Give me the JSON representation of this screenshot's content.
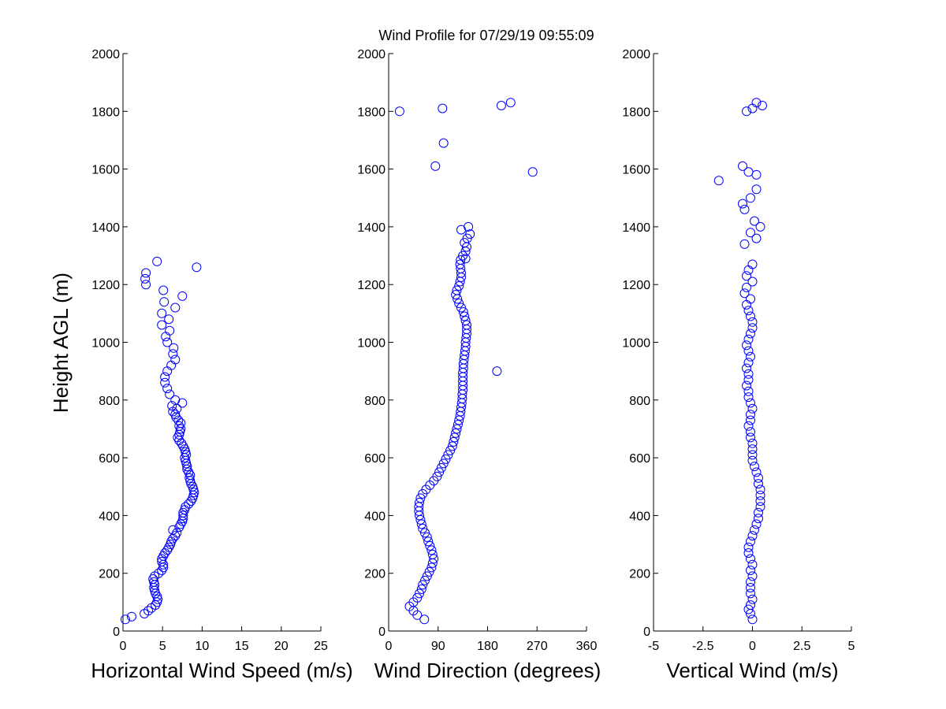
{
  "chart_data": {
    "title": "Wind Profile for  07/29/19 09:55:09",
    "ylabel": "Height AGL (m)",
    "marker_color": "#0000ff",
    "grid": false,
    "panels": [
      {
        "type": "scatter",
        "xlabel": "Horizontal Wind Speed (m/s)",
        "xlim": [
          0,
          25
        ],
        "ylim": [
          0,
          2000
        ],
        "xticks": [
          "0",
          "5",
          "10",
          "15",
          "20",
          "25"
        ],
        "yticks": [
          "0",
          "200",
          "400",
          "600",
          "800",
          "1000",
          "1200",
          "1400",
          "1600",
          "1800",
          "2000"
        ],
        "x": [
          0.3,
          1.1,
          2.7,
          3.2,
          3.6,
          4.1,
          4.3,
          4.4,
          4.3,
          4.1,
          4.0,
          3.9,
          4.0,
          3.9,
          3.8,
          4.0,
          4.5,
          4.9,
          5.1,
          5.1,
          4.9,
          4.9,
          5.1,
          5.3,
          5.6,
          5.8,
          6.0,
          6.1,
          6.3,
          6.6,
          6.8,
          6.3,
          7.1,
          7.3,
          7.5,
          7.6,
          7.6,
          7.6,
          7.8,
          7.9,
          8.3,
          8.6,
          8.8,
          8.9,
          9.0,
          8.9,
          8.8,
          8.6,
          8.5,
          8.4,
          8.5,
          8.3,
          8.1,
          8.1,
          8.0,
          7.9,
          7.8,
          8.0,
          7.9,
          7.8,
          7.6,
          7.4,
          7.1,
          6.9,
          7.1,
          7.2,
          7.3,
          7.1,
          7.3,
          7.0,
          6.7,
          6.6,
          6.3,
          6.8,
          6.2,
          7.5,
          6.6,
          5.9,
          5.6,
          5.3,
          5.3,
          5.6,
          6.1,
          6.6,
          6.3,
          6.4,
          5.6,
          5.4,
          5.9,
          4.9,
          5.8,
          4.9,
          6.6,
          5.2,
          7.5,
          5.1,
          2.9,
          2.8,
          2.9,
          9.3,
          4.3
        ],
        "y": [
          40,
          50,
          60,
          70,
          80,
          90,
          100,
          110,
          120,
          130,
          140,
          150,
          160,
          170,
          180,
          190,
          200,
          210,
          220,
          230,
          240,
          250,
          260,
          270,
          280,
          290,
          300,
          310,
          320,
          330,
          340,
          350,
          360,
          370,
          380,
          390,
          400,
          410,
          420,
          430,
          440,
          450,
          460,
          470,
          480,
          490,
          500,
          510,
          520,
          530,
          540,
          550,
          560,
          570,
          580,
          590,
          600,
          610,
          620,
          630,
          640,
          650,
          660,
          670,
          680,
          690,
          700,
          710,
          720,
          730,
          740,
          750,
          760,
          770,
          780,
          790,
          800,
          820,
          840,
          860,
          880,
          900,
          920,
          940,
          960,
          980,
          1000,
          1020,
          1040,
          1060,
          1080,
          1100,
          1120,
          1140,
          1160,
          1180,
          1200,
          1220,
          1240,
          1260,
          1280
        ]
      },
      {
        "type": "scatter",
        "xlabel": "Wind Direction (degrees)",
        "xlim": [
          0,
          360
        ],
        "ylim": [
          0,
          2000
        ],
        "xticks": [
          "0",
          "90",
          "180",
          "270",
          "360"
        ],
        "yticks": [
          "0",
          "200",
          "400",
          "600",
          "800",
          "1000",
          "1200",
          "1400",
          "1600",
          "1800",
          "2000"
        ],
        "x": [
          65,
          52,
          45,
          38,
          45,
          52,
          56,
          60,
          62,
          66,
          70,
          74,
          78,
          80,
          82,
          80,
          78,
          75,
          72,
          70,
          66,
          62,
          60,
          58,
          56,
          55,
          55,
          56,
          58,
          62,
          68,
          75,
          82,
          88,
          92,
          96,
          100,
          104,
          108,
          112,
          116,
          118,
          120,
          122,
          124,
          126,
          128,
          130,
          131,
          132,
          133,
          134,
          134,
          135,
          135,
          135,
          135,
          135,
          136,
          136,
          137,
          138,
          139,
          140,
          140,
          141,
          142,
          142,
          142,
          140,
          138,
          136,
          132,
          128,
          125,
          122,
          124,
          128,
          130,
          132,
          132,
          131,
          130,
          131,
          135,
          140,
          142,
          138,
          143,
          148,
          132,
          197,
          262,
          85,
          100,
          98,
          20,
          205,
          222,
          145,
          140
        ],
        "y": [
          40,
          55,
          70,
          85,
          100,
          115,
          130,
          145,
          160,
          175,
          190,
          205,
          220,
          235,
          250,
          265,
          280,
          295,
          310,
          325,
          340,
          355,
          370,
          385,
          400,
          415,
          430,
          445,
          460,
          475,
          490,
          505,
          520,
          535,
          550,
          565,
          580,
          595,
          610,
          625,
          640,
          655,
          670,
          685,
          700,
          715,
          730,
          745,
          760,
          775,
          790,
          805,
          820,
          835,
          850,
          865,
          880,
          895,
          910,
          925,
          940,
          955,
          970,
          985,
          1000,
          1015,
          1030,
          1045,
          1060,
          1075,
          1090,
          1105,
          1120,
          1135,
          1150,
          1165,
          1180,
          1195,
          1210,
          1225,
          1240,
          1255,
          1270,
          1285,
          1300,
          1315,
          1330,
          1345,
          1360,
          1375,
          1390,
          900,
          1590,
          1610,
          1690,
          1810,
          1800,
          1820,
          1830,
          1400,
          1290
        ]
      },
      {
        "type": "scatter",
        "xlabel": "Vertical Wind (m/s)",
        "xlim": [
          -5,
          5
        ],
        "ylim": [
          0,
          2000
        ],
        "xticks": [
          "-5",
          "-2.5",
          "0",
          "2.5",
          "5"
        ],
        "yticks": [
          "0",
          "200",
          "400",
          "600",
          "800",
          "1000",
          "1200",
          "1400",
          "1600",
          "1800",
          "2000"
        ],
        "x": [
          0.0,
          -0.1,
          -0.2,
          -0.1,
          0.0,
          -0.1,
          -0.1,
          -0.1,
          0.0,
          -0.1,
          0.0,
          -0.1,
          -0.2,
          -0.2,
          -0.1,
          0.0,
          0.1,
          0.2,
          0.3,
          0.3,
          0.4,
          0.4,
          0.4,
          0.4,
          0.3,
          0.3,
          0.2,
          0.1,
          0.0,
          0.0,
          0.0,
          0.0,
          -0.1,
          -0.1,
          -0.2,
          -0.1,
          -0.1,
          0.0,
          -0.1,
          -0.2,
          -0.2,
          -0.3,
          -0.2,
          -0.2,
          -0.3,
          -0.2,
          -0.1,
          -0.2,
          -0.3,
          -0.2,
          -0.1,
          0.0,
          0.0,
          -0.1,
          -0.2,
          -0.3,
          -0.1,
          -0.4,
          -0.3,
          0.0,
          -0.3,
          -0.2,
          0.0,
          0.4,
          -0.1,
          0.2,
          0.1,
          -0.4,
          -0.5,
          -1.7,
          -0.2,
          -0.5,
          0.2,
          -0.1,
          0.2,
          -0.4,
          0.5,
          0.2,
          0.0,
          -0.3
        ],
        "y": [
          40,
          60,
          75,
          90,
          110,
          130,
          150,
          170,
          190,
          210,
          230,
          250,
          270,
          290,
          310,
          330,
          350,
          370,
          390,
          410,
          430,
          450,
          470,
          490,
          510,
          530,
          550,
          570,
          590,
          610,
          630,
          650,
          670,
          690,
          710,
          730,
          750,
          770,
          790,
          810,
          830,
          850,
          870,
          890,
          910,
          930,
          950,
          970,
          990,
          1010,
          1030,
          1050,
          1070,
          1090,
          1110,
          1130,
          1150,
          1170,
          1190,
          1210,
          1230,
          1250,
          1270,
          1400,
          1380,
          1360,
          1420,
          1460,
          1480,
          1560,
          1590,
          1610,
          1580,
          1500,
          1530,
          1340,
          1820,
          1830,
          1810,
          1800
        ]
      }
    ]
  }
}
